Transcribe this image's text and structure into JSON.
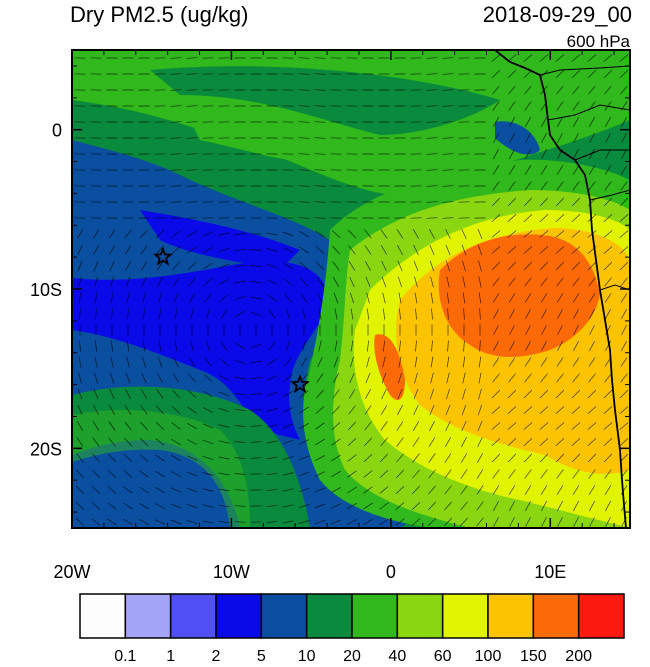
{
  "title": {
    "variable": "Dry PM2.5 (ug/kg)",
    "datetime": "2018-09-29_00",
    "level": "600 hPa"
  },
  "axes": {
    "x_ticks": [
      {
        "label": "20W",
        "lon": -20
      },
      {
        "label": "10W",
        "lon": -10
      },
      {
        "label": "0",
        "lon": 0
      },
      {
        "label": "10E",
        "lon": 10
      }
    ],
    "y_ticks": [
      {
        "label": "0",
        "lat": 0
      },
      {
        "label": "10S",
        "lat": -10
      },
      {
        "label": "20S",
        "lat": -20
      }
    ],
    "lon_range": [
      -20,
      15
    ],
    "lat_range": [
      -25,
      5
    ]
  },
  "colorbar": {
    "colors": [
      "#fdfdfd",
      "#a4a4f8",
      "#5050f4",
      "#0a0ae8",
      "#0a4fa0",
      "#0a8a3c",
      "#30b81c",
      "#8ad610",
      "#e0f400",
      "#fcc400",
      "#fc6a08",
      "#fc1a10"
    ],
    "labels": [
      "0.1",
      "1",
      "2",
      "5",
      "10",
      "20",
      "40",
      "60",
      "100",
      "150",
      "200"
    ]
  },
  "markers": [
    {
      "name": "star-1",
      "lon": -14.3,
      "lat": -8.0
    },
    {
      "name": "star-2",
      "lon": -5.7,
      "lat": -16.0
    }
  ]
}
